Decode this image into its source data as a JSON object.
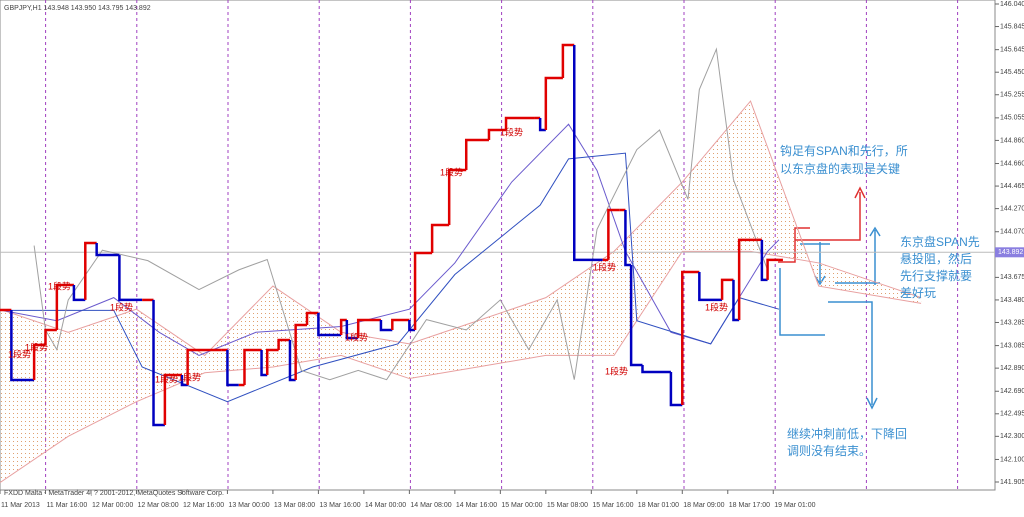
{
  "chart_data": {
    "type": "line",
    "title": "GBPJPY,H1  143.948 143.950 143.795 143.892",
    "footer": "FXDD Malta - MetaTrader 4, ? 2001-2012, MetaQuotes Software Corp.",
    "last_price": 143.892,
    "xlim": [
      0,
      175
    ],
    "ylim": [
      141.905,
      146.04
    ],
    "grid": false,
    "yticks": [
      {
        "value": 146.04,
        "label": "146.040"
      },
      145.845,
      145.645,
      {
        "value": 145.45,
        "label": "145.450"
      },
      145.255,
      145.055,
      {
        "value": 144.86,
        "label": "144.860"
      },
      {
        "value": 144.66,
        "label": "144.660"
      },
      144.465,
      {
        "value": 144.27,
        "label": "144.270"
      },
      {
        "value": 144.07,
        "label": "144.070"
      },
      143.675,
      {
        "value": 143.48,
        "label": "143.480"
      },
      143.285,
      143.085,
      {
        "value": 142.89,
        "label": "142.890"
      },
      {
        "value": 142.69,
        "label": "142.690"
      },
      142.495,
      {
        "value": 142.3,
        "label": "142.300"
      },
      {
        "value": 142.1,
        "label": "142.100"
      },
      141.905
    ],
    "xticks": [
      {
        "value": 0,
        "label": "11 Mar 2013"
      },
      {
        "value": 8,
        "label": "11 Mar 16:00"
      },
      {
        "value": 16,
        "label": "12 Mar 00:00"
      },
      {
        "value": 24,
        "label": "12 Mar 08:00"
      },
      {
        "value": 32,
        "label": "12 Mar 16:00"
      },
      {
        "value": 40,
        "label": "13 Mar 00:00"
      },
      {
        "value": 48,
        "label": "13 Mar 08:00"
      },
      {
        "value": 56,
        "label": "13 Mar 16:00"
      },
      {
        "value": 64,
        "label": "14 Mar 00:00"
      },
      {
        "value": 72,
        "label": "14 Mar 08:00"
      },
      {
        "value": 80,
        "label": "14 Mar 16:00"
      },
      {
        "value": 88,
        "label": "15 Mar 00:00"
      },
      {
        "value": 96,
        "label": "15 Mar 08:00"
      },
      {
        "value": 104,
        "label": "15 Mar 16:00"
      },
      {
        "value": 112,
        "label": "18 Mar 01:00"
      },
      {
        "value": 120,
        "label": "18 Mar 09:00"
      },
      {
        "value": 128,
        "label": "18 Mar 17:00"
      },
      {
        "value": 136,
        "label": "19 Mar 01:00"
      }
    ],
    "price": {
      "up_color": "#e00000",
      "down_color": "#0000c0",
      "x": [
        0,
        2,
        6,
        8,
        10,
        13,
        15,
        17,
        21,
        25,
        27,
        29,
        32,
        33,
        39,
        40,
        42,
        43,
        46,
        47,
        49,
        51,
        52,
        54,
        56,
        60,
        61,
        63,
        67,
        69,
        72,
        73,
        76,
        79,
        82,
        86,
        89,
        94,
        95,
        96,
        99,
        101,
        106,
        107,
        109,
        110,
        111,
        113,
        118,
        120,
        123,
        127,
        129,
        130,
        133,
        134,
        135,
        137
      ],
      "values": [
        143.393,
        142.787,
        143.09,
        143.22,
        143.609,
        143.48,
        143.973,
        143.869,
        143.48,
        143.48,
        142.398,
        142.831,
        142.744,
        143.047,
        143.047,
        142.744,
        142.744,
        143.047,
        142.831,
        143.047,
        143.133,
        142.787,
        143.263,
        143.367,
        143.177,
        143.306,
        143.151,
        143.306,
        143.22,
        143.306,
        143.22,
        143.886,
        144.128,
        144.604,
        144.864,
        144.95,
        145.054,
        145.054,
        144.95,
        145.4,
        145.685,
        143.826,
        143.826,
        144.258,
        144.258,
        143.782,
        142.917,
        142.857,
        142.571,
        143.722,
        143.48,
        143.653,
        143.306,
        144.0,
        144.0,
        143.653,
        143.826,
        143.826
      ]
    },
    "series": [
      {
        "name": "tenkan",
        "color": "#6a5acd",
        "x": [
          0,
          10,
          20,
          28,
          35,
          45,
          60,
          72,
          80,
          90,
          100,
          105,
          110,
          118,
          125,
          130,
          135,
          137
        ],
        "values": [
          143.393,
          143.3,
          143.5,
          143.2,
          143.0,
          143.2,
          143.25,
          143.4,
          143.8,
          144.5,
          145.0,
          144.6,
          143.9,
          143.2,
          143.1,
          143.5,
          143.9,
          144.0
        ]
      },
      {
        "name": "kijun",
        "color": "#3050c0",
        "x": [
          0,
          20,
          25,
          40,
          55,
          70,
          80,
          95,
          100,
          110,
          112,
          125,
          130,
          137
        ],
        "values": [
          143.39,
          143.39,
          142.9,
          142.6,
          142.9,
          143.1,
          143.7,
          144.3,
          144.7,
          144.75,
          143.3,
          143.1,
          143.5,
          143.4
        ]
      },
      {
        "name": "chikou",
        "color": "#a0a0a0",
        "x": [
          6,
          8,
          10,
          12,
          18,
          26,
          35,
          42,
          47,
          53,
          58,
          63,
          68,
          75,
          82,
          88,
          93,
          98,
          101,
          105,
          112,
          116,
          121,
          123,
          126,
          129,
          135
        ],
        "values": [
          143.95,
          143.22,
          143.05,
          143.48,
          143.91,
          143.82,
          143.57,
          143.74,
          143.83,
          142.87,
          142.79,
          142.87,
          142.79,
          143.31,
          143.22,
          143.48,
          143.05,
          143.48,
          142.79,
          144.09,
          144.78,
          144.95,
          144.35,
          145.3,
          145.65,
          144.52,
          143.74
        ]
      }
    ],
    "cloud": {
      "color": "#e0a070",
      "line_color": "#e8a0a0",
      "x": [
        0,
        12,
        24,
        36,
        48,
        60,
        72,
        84,
        96,
        108,
        120,
        132,
        144,
        156,
        162
      ],
      "span_a": [
        143.4,
        143.2,
        143.4,
        143.0,
        143.6,
        143.2,
        143.1,
        143.3,
        143.5,
        143.9,
        144.5,
        145.2,
        143.6,
        143.5,
        143.45
      ],
      "span_b": [
        141.9,
        142.3,
        142.6,
        142.85,
        142.9,
        143.0,
        142.8,
        142.9,
        143.0,
        143.0,
        143.9,
        143.9,
        143.8,
        143.6,
        143.5
      ]
    },
    "signals": [
      "1段势",
      "1段势",
      "1段势",
      "1段势",
      "1段势",
      "1段势",
      "1段势",
      "1段势",
      "1段势",
      "1段势",
      "1段势",
      "1段势"
    ],
    "notes": [
      [
        "钩足有SPAN和先行，所",
        "以东京盘的表现是关键"
      ],
      [
        "东京盘SPAN先",
        "悬投阻，然后",
        "先行支撑就要",
        "差好玩"
      ],
      [
        "继续冲刺前低，下降回",
        "调则没有结束。"
      ]
    ]
  }
}
